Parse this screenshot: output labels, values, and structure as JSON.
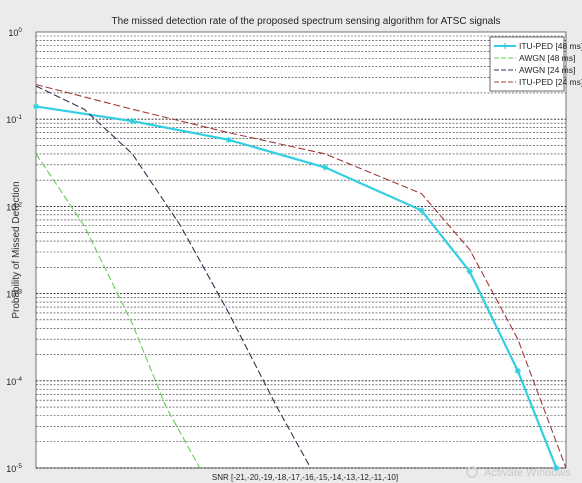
{
  "chart_data": {
    "type": "line",
    "title": "The missed detection rate of the proposed spectrum sensing algorithm for ATSC signals",
    "ylabel": "Probability of Missed Detection",
    "xlabel": "SNR [-21,-20,-19,-18,-17,-16,-15,-14,-13,-12,-11,-10]",
    "x": [
      -21,
      -20,
      -19,
      -18,
      -17,
      -16,
      -15,
      -14,
      -13,
      -12,
      -11,
      -10
    ],
    "xlim": [
      -21,
      -10
    ],
    "ylim": [
      1e-05,
      1
    ],
    "yscale": "log",
    "yticks": [
      {
        "base": "10",
        "exp": "0"
      },
      {
        "base": "10",
        "exp": "-1"
      },
      {
        "base": "10",
        "exp": "-2"
      },
      {
        "base": "10",
        "exp": "-3"
      },
      {
        "base": "10",
        "exp": "-4"
      },
      {
        "base": "10",
        "exp": "-5"
      }
    ],
    "grid": true,
    "legend_position": "top-right",
    "series": [
      {
        "name": "ITU-PED [48 ms]",
        "color": "#33cfe0",
        "style": "solid",
        "marker": "star",
        "x": [
          -21,
          -19,
          -17,
          -15,
          -13,
          -12,
          -11,
          -10.2
        ],
        "values": [
          0.14,
          0.095,
          0.058,
          0.028,
          0.009,
          0.0018,
          0.00013,
          1e-05
        ]
      },
      {
        "name": "AWGN [48 ms]",
        "color": "#66cc55",
        "style": "dashed",
        "marker": "none",
        "x": [
          -21,
          -20,
          -19,
          -18.3,
          -17.6
        ],
        "values": [
          0.04,
          0.006,
          0.00045,
          5e-05,
          1e-05
        ]
      },
      {
        "name": "AWGN [24 ms]",
        "color": "#333355",
        "style": "dashed",
        "marker": "none",
        "x": [
          -21,
          -20,
          -19,
          -18,
          -17,
          -16,
          -15.3
        ],
        "values": [
          0.24,
          0.13,
          0.04,
          0.006,
          0.0006,
          5e-05,
          1e-05
        ]
      },
      {
        "name": "ITU-PED [24 ms]",
        "color": "#a33a3a",
        "style": "dashed",
        "marker": "none",
        "x": [
          -21,
          -19,
          -17,
          -15,
          -13,
          -12,
          -11,
          -10
        ],
        "values": [
          0.25,
          0.13,
          0.07,
          0.04,
          0.014,
          0.0032,
          0.0003,
          1e-05
        ]
      }
    ]
  },
  "watermark": "Activate Windows"
}
